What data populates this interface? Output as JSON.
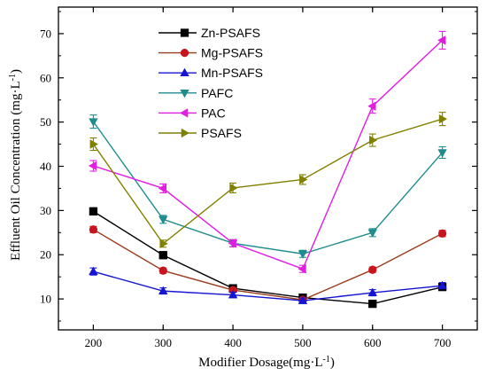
{
  "chart_data": {
    "type": "line",
    "x": [
      200,
      300,
      400,
      500,
      600,
      700
    ],
    "xlim": [
      150,
      750
    ],
    "ylim": [
      3,
      76
    ],
    "xticks": [
      200,
      300,
      400,
      500,
      600,
      700
    ],
    "yticks": [
      10,
      20,
      30,
      40,
      50,
      60,
      70
    ],
    "xlabel": {
      "main": "Modifier Dosage(mg·L",
      "sup": "-1",
      "end": ")"
    },
    "ylabel": {
      "main": "Effluent Oil Concentration (mg·L",
      "sup": "-1",
      "end": ")"
    },
    "legend_position": "top-left",
    "grid": false,
    "series": [
      {
        "name": "Zn-PSAFS",
        "color": "#000000",
        "marker": "square",
        "values": [
          29.8,
          19.9,
          12.4,
          10.3,
          8.9,
          12.7
        ],
        "err": [
          0.8,
          0.6,
          0.5,
          0.5,
          0.4,
          0.5
        ]
      },
      {
        "name": "Mg-PSAFS",
        "color": "#c8141c",
        "line_color": "#9b3b1e",
        "marker": "circle",
        "values": [
          25.7,
          16.4,
          12.0,
          9.8,
          16.6,
          24.8
        ],
        "err": [
          0.7,
          0.6,
          0.5,
          0.5,
          0.6,
          0.7
        ]
      },
      {
        "name": "Mn-PSAFS",
        "color": "#1414d2",
        "marker": "triangle-up",
        "values": [
          16.2,
          11.8,
          10.9,
          9.6,
          11.4,
          13.0
        ],
        "err": [
          0.8,
          0.7,
          0.6,
          0.6,
          0.7,
          0.7
        ]
      },
      {
        "name": "PAFC",
        "color": "#1f8c8c",
        "marker": "triangle-down",
        "values": [
          50.1,
          28.0,
          22.6,
          20.2,
          25.0,
          43.1
        ],
        "err": [
          1.5,
          0.9,
          0.8,
          0.8,
          0.9,
          1.3
        ]
      },
      {
        "name": "PAC",
        "color": "#e31ce3",
        "marker": "triangle-left",
        "values": [
          40.1,
          35.0,
          22.6,
          16.8,
          53.6,
          68.5
        ],
        "err": [
          1.2,
          1.0,
          0.8,
          0.8,
          1.6,
          2.0
        ]
      },
      {
        "name": "PSAFS",
        "color": "#808000",
        "marker": "triangle-right",
        "values": [
          45.0,
          22.5,
          35.1,
          37.0,
          45.9,
          50.7
        ],
        "err": [
          1.4,
          0.8,
          1.1,
          1.1,
          1.4,
          1.5
        ]
      }
    ]
  }
}
